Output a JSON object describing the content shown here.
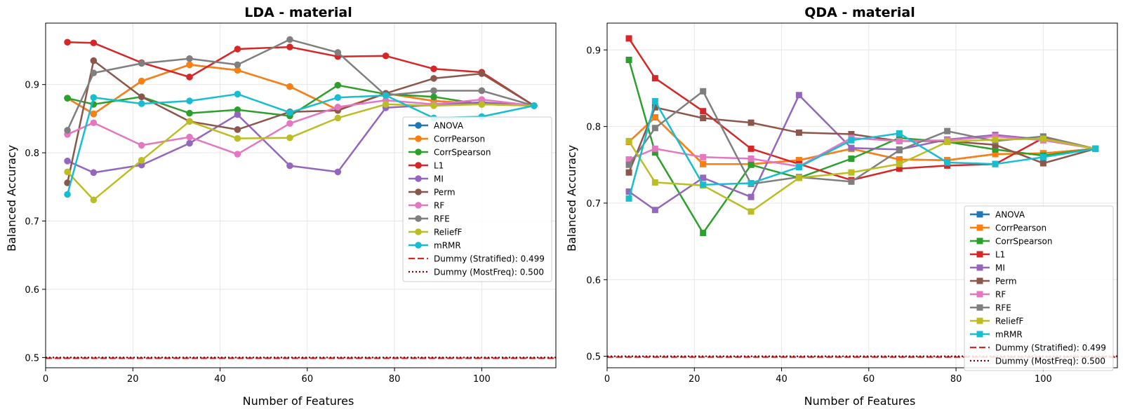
{
  "chart_data": [
    {
      "type": "line",
      "title": "LDA - material",
      "xlabel": "Number of Features",
      "ylabel": "Balanced Accuracy",
      "marker": "circle",
      "xlim": [
        0,
        117
      ],
      "ylim": [
        0.485,
        0.99
      ],
      "xticks": [
        0,
        20,
        40,
        60,
        80,
        100
      ],
      "yticks": [
        0.5,
        0.6,
        0.7,
        0.8,
        0.9
      ],
      "grid": true,
      "legend_position": "center-right",
      "x": [
        5,
        11,
        22,
        33,
        44,
        56,
        67,
        78,
        89,
        100,
        112
      ],
      "series": [
        {
          "name": "ANOVA",
          "color": "#1f77b4",
          "values": [
            0.88,
            0.857,
            0.905,
            0.929,
            0.921,
            0.897,
            0.863,
            0.887,
            0.876,
            0.872,
            0.869
          ]
        },
        {
          "name": "CorrPearson",
          "color": "#ff7f0e",
          "values": [
            0.88,
            0.857,
            0.905,
            0.929,
            0.921,
            0.897,
            0.863,
            0.887,
            0.876,
            0.872,
            0.869
          ]
        },
        {
          "name": "CorrSpearson",
          "color": "#2ca02c",
          "values": [
            0.88,
            0.871,
            0.882,
            0.858,
            0.863,
            0.854,
            0.899,
            0.886,
            0.882,
            0.871,
            0.869
          ]
        },
        {
          "name": "L1",
          "color": "#d62728",
          "values": [
            0.962,
            0.961,
            0.932,
            0.911,
            0.952,
            0.955,
            0.941,
            0.942,
            0.923,
            0.918,
            0.869
          ]
        },
        {
          "name": "MI",
          "color": "#9467bd",
          "values": [
            0.788,
            0.771,
            0.782,
            0.814,
            0.856,
            0.781,
            0.772,
            0.866,
            0.87,
            0.874,
            0.869
          ]
        },
        {
          "name": "Perm",
          "color": "#8c564b",
          "values": [
            0.756,
            0.935,
            0.882,
            0.846,
            0.834,
            0.86,
            0.862,
            0.887,
            0.909,
            0.916,
            0.869
          ]
        },
        {
          "name": "RF",
          "color": "#e377c2",
          "values": [
            0.827,
            0.844,
            0.811,
            0.823,
            0.798,
            0.843,
            0.867,
            0.877,
            0.871,
            0.878,
            0.869
          ]
        },
        {
          "name": "RFE",
          "color": "#7f7f7f",
          "values": [
            0.833,
            0.917,
            0.931,
            0.938,
            0.929,
            0.966,
            0.947,
            0.884,
            0.891,
            0.891,
            0.869
          ]
        },
        {
          "name": "ReliefF",
          "color": "#bcbd22",
          "values": [
            0.772,
            0.731,
            0.789,
            0.846,
            0.821,
            0.822,
            0.851,
            0.871,
            0.869,
            0.871,
            0.869
          ]
        },
        {
          "name": "mRMR",
          "color": "#17becf",
          "values": [
            0.739,
            0.881,
            0.872,
            0.876,
            0.886,
            0.859,
            0.881,
            0.884,
            0.851,
            0.853,
            0.869
          ]
        }
      ],
      "baselines": [
        {
          "name": "Dummy (Stratified): 0.499",
          "value": 0.499,
          "color": "#d62728",
          "style": "dashed"
        },
        {
          "name": "Dummy (MostFreq): 0.500",
          "value": 0.5,
          "color": "#7f0000",
          "style": "dotted"
        }
      ]
    },
    {
      "type": "line",
      "title": "QDA - material",
      "xlabel": "Number of Features",
      "ylabel": "Balanced Accuracy",
      "marker": "square",
      "xlim": [
        0,
        117
      ],
      "ylim": [
        0.485,
        0.935
      ],
      "xticks": [
        0,
        20,
        40,
        60,
        80,
        100
      ],
      "yticks": [
        0.5,
        0.6,
        0.7,
        0.8,
        0.9
      ],
      "grid": true,
      "legend_position": "lower-right",
      "x": [
        5,
        11,
        22,
        33,
        44,
        56,
        67,
        78,
        89,
        100,
        112
      ],
      "series": [
        {
          "name": "ANOVA",
          "color": "#1f77b4",
          "values": [
            0.78,
            0.812,
            0.751,
            0.751,
            0.756,
            0.771,
            0.757,
            0.756,
            0.764,
            0.765,
            0.771
          ]
        },
        {
          "name": "CorrPearson",
          "color": "#ff7f0e",
          "values": [
            0.78,
            0.812,
            0.751,
            0.751,
            0.756,
            0.771,
            0.757,
            0.756,
            0.764,
            0.765,
            0.771
          ]
        },
        {
          "name": "CorrSpearson",
          "color": "#2ca02c",
          "values": [
            0.887,
            0.766,
            0.661,
            0.75,
            0.733,
            0.758,
            0.785,
            0.78,
            0.77,
            0.762,
            0.771
          ]
        },
        {
          "name": "L1",
          "color": "#d62728",
          "values": [
            0.915,
            0.863,
            0.82,
            0.771,
            0.751,
            0.73,
            0.745,
            0.749,
            0.751,
            0.785,
            0.771
          ]
        },
        {
          "name": "MI",
          "color": "#9467bd",
          "values": [
            0.715,
            0.691,
            0.733,
            0.708,
            0.841,
            0.772,
            0.77,
            0.783,
            0.789,
            0.783,
            0.771
          ]
        },
        {
          "name": "Perm",
          "color": "#8c564b",
          "values": [
            0.74,
            0.825,
            0.811,
            0.805,
            0.792,
            0.79,
            0.781,
            0.781,
            0.776,
            0.752,
            0.771
          ]
        },
        {
          "name": "RF",
          "color": "#e377c2",
          "values": [
            0.757,
            0.771,
            0.76,
            0.758,
            0.748,
            0.785,
            0.781,
            0.782,
            0.787,
            0.782,
            0.771
          ]
        },
        {
          "name": "RFE",
          "color": "#7f7f7f",
          "values": [
            0.75,
            0.798,
            0.846,
            0.725,
            0.734,
            0.728,
            0.769,
            0.794,
            0.781,
            0.787,
            0.771
          ]
        },
        {
          "name": "ReliefF",
          "color": "#bcbd22",
          "values": [
            0.781,
            0.727,
            0.723,
            0.689,
            0.733,
            0.74,
            0.751,
            0.78,
            0.783,
            0.784,
            0.771
          ]
        },
        {
          "name": "mRMR",
          "color": "#17becf",
          "values": [
            0.706,
            0.833,
            0.724,
            0.726,
            0.747,
            0.782,
            0.791,
            0.753,
            0.751,
            0.76,
            0.771
          ]
        }
      ],
      "baselines": [
        {
          "name": "Dummy (Stratified): 0.499",
          "value": 0.499,
          "color": "#d62728",
          "style": "dashed"
        },
        {
          "name": "Dummy (MostFreq): 0.500",
          "value": 0.5,
          "color": "#7f0000",
          "style": "dotted"
        }
      ]
    }
  ]
}
